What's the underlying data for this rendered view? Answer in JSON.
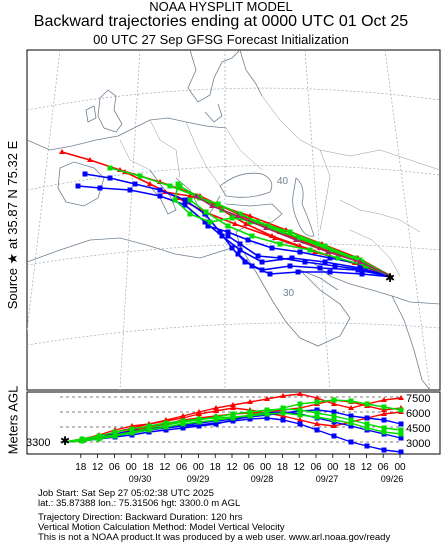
{
  "header": {
    "line1": "NOAA HYSPLIT MODEL",
    "line2": "Backward trajectories ending at 0000 UTC 01 Oct 25",
    "line3": "00 UTC 27 Sep    GFSG  Forecast Initialization"
  },
  "source_label": "Source ★ at    35.87 N    75.32 E",
  "height_axis": {
    "label": "Meters AGL",
    "start_label": "3300",
    "right_ticks": [
      "7500",
      "6000",
      "4500",
      "3000"
    ]
  },
  "time_axis": {
    "hours": [
      "18",
      "12",
      "06",
      "00",
      "18",
      "12",
      "06",
      "00",
      "18",
      "12",
      "06",
      "00",
      "18",
      "12",
      "06",
      "00",
      "18",
      "12",
      "06",
      "00"
    ],
    "dates": [
      "09/30",
      "09/29",
      "09/28",
      "09/27",
      "09/26"
    ]
  },
  "map": {
    "lat_labels": [
      "40",
      "30"
    ],
    "source": {
      "lat": 35.87,
      "lon": 75.32
    },
    "colors": {
      "red": "#ff0000",
      "blue": "#0000ff",
      "green": "#00dd00",
      "background": "#ffffff",
      "lines": "#708090"
    }
  },
  "footer": {
    "line1": "Job Start: Sat Sep 27 05:02:38 UTC 2025",
    "line2": "lat.: 35.87388   lon.: 75.31506   hgt: 3300.0 m AGL",
    "line3": "Trajectory Direction: Backward       Duration: 120 hrs",
    "line4": "Vertical Motion Calculation Method: Model Vertical Velocity",
    "line5": "This is not a NOAA product.It was produced by a web user. www.arl.noaa.gov/ready"
  }
}
